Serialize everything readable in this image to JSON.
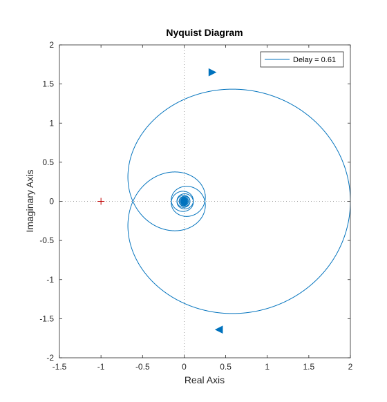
{
  "chart_data": {
    "type": "line",
    "title": "Nyquist Diagram",
    "xlabel": "Real Axis",
    "ylabel": "Imaginary Axis",
    "xlim": [
      -1.5,
      2
    ],
    "ylim": [
      -2,
      2
    ],
    "xticks": [
      -1.5,
      -1,
      -0.5,
      0,
      0.5,
      1,
      1.5,
      2
    ],
    "xtick_labels": [
      "-1.5",
      "-1",
      "-0.5",
      "0",
      "0.5",
      "1",
      "1.5",
      "2"
    ],
    "yticks": [
      -2,
      -1.5,
      -1,
      -0.5,
      0,
      0.5,
      1,
      1.5,
      2
    ],
    "ytick_labels": [
      "-2",
      "-1.5",
      "-1",
      "-0.5",
      "0",
      "0.5",
      "1",
      "1.5",
      "2"
    ],
    "grid": false,
    "zero_lines": "dotted",
    "legend_position": "top-right",
    "critical_point": {
      "x": -1,
      "y": 0,
      "marker": "+"
    },
    "series": [
      {
        "name": "Delay = 0.61",
        "color": "#0072BD",
        "curve": {
          "gain": 2,
          "pole": 1,
          "delay": 0.61
        },
        "arrows": [
          {
            "x": 0.34,
            "y": 1.65,
            "direction": "right"
          },
          {
            "x": 0.42,
            "y": -1.64,
            "direction": "left"
          }
        ]
      }
    ]
  }
}
